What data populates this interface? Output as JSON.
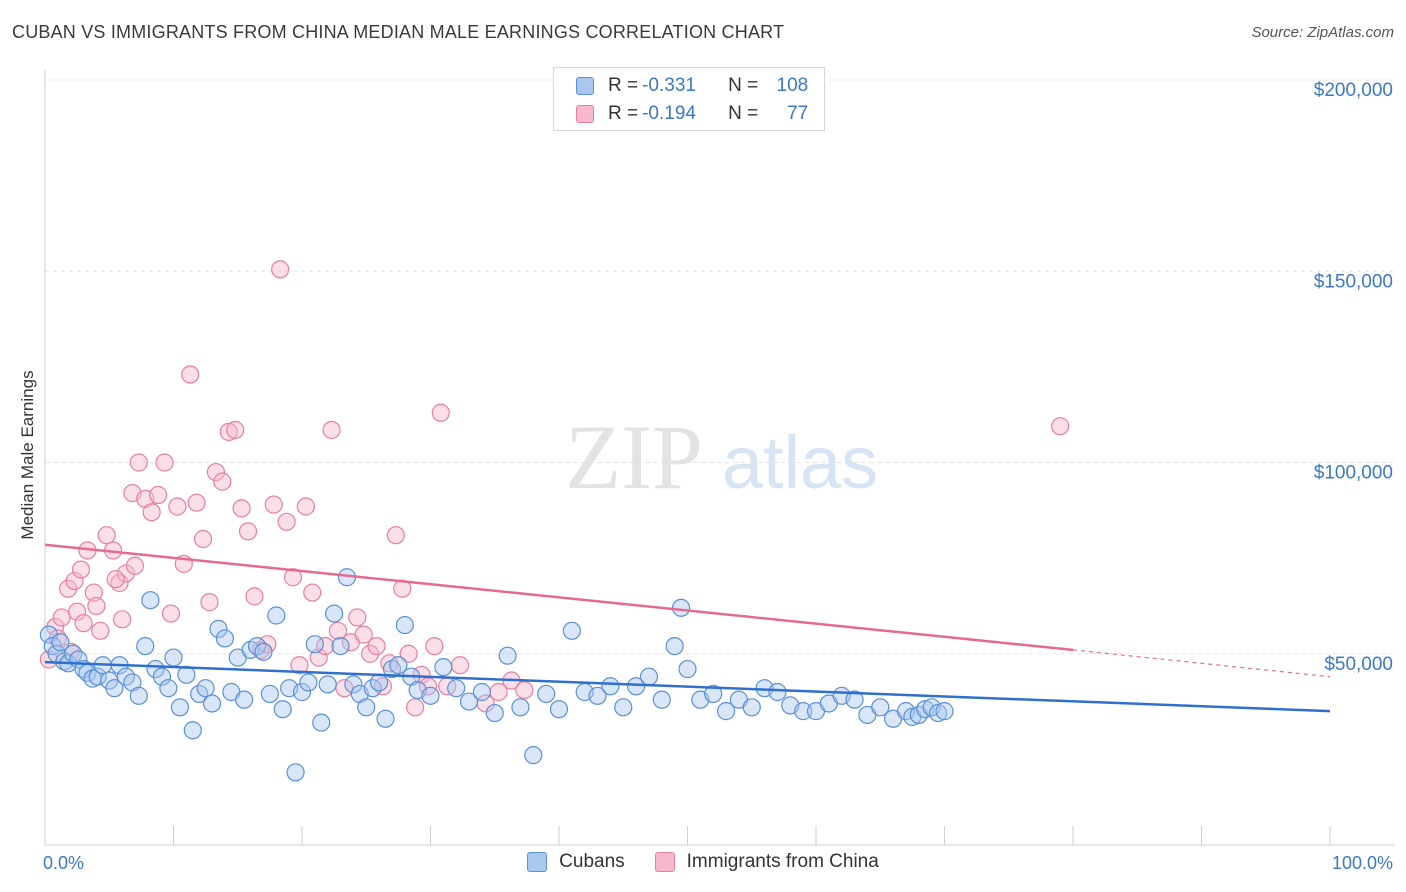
{
  "header": {
    "title": "CUBAN VS IMMIGRANTS FROM CHINA MEDIAN MALE EARNINGS CORRELATION CHART",
    "source": "Source: ZipAtlas.com"
  },
  "watermark": {
    "zip": "ZIP",
    "atlas": "atlas"
  },
  "legend": {
    "rows": [
      {
        "r_label": "R =",
        "r_value": "-0.331",
        "n_label": "N =",
        "n_value": "108"
      },
      {
        "r_label": "R =",
        "r_value": "-0.194",
        "n_label": "N =",
        "n_value": "77"
      }
    ]
  },
  "colors": {
    "cubans_fill": "#a9c8f0",
    "cubans_stroke": "#5b8fd6",
    "cubans_line": "#2f6fce",
    "china_fill": "#f6b8cb",
    "china_stroke": "#e77fa0",
    "china_line": "#e56a93",
    "tick_text": "#3b78c8"
  },
  "chart_data": {
    "type": "scatter",
    "title": "CUBAN VS IMMIGRANTS FROM CHINA MEDIAN MALE EARNINGS CORRELATION CHART",
    "xlabel": "",
    "ylabel": "Median Male Earnings",
    "xlim": [
      0,
      100
    ],
    "ylim": [
      0,
      210000
    ],
    "x_tick_labels": [
      "0.0%",
      "100.0%"
    ],
    "y_ticks": [
      {
        "value": 50000,
        "label": "$50,000"
      },
      {
        "value": 100000,
        "label": "$100,000"
      },
      {
        "value": 150000,
        "label": "$150,000"
      },
      {
        "value": 200000,
        "label": "$200,000"
      }
    ],
    "grid": true,
    "legend_position": "bottom-center",
    "series": [
      {
        "name": "Cubans",
        "trend": {
          "x": [
            0,
            100
          ],
          "y": [
            47800,
            35000
          ]
        },
        "points": [
          [
            0.3,
            55000
          ],
          [
            0.6,
            52000
          ],
          [
            0.9,
            50000
          ],
          [
            1.2,
            53000
          ],
          [
            1.5,
            48000
          ],
          [
            1.8,
            47500
          ],
          [
            2.2,
            50000
          ],
          [
            2.6,
            48500
          ],
          [
            3.0,
            46000
          ],
          [
            3.3,
            45000
          ],
          [
            3.7,
            43500
          ],
          [
            4.1,
            44000
          ],
          [
            4.5,
            47000
          ],
          [
            5.0,
            43000
          ],
          [
            5.4,
            41000
          ],
          [
            5.8,
            47000
          ],
          [
            6.3,
            44000
          ],
          [
            6.8,
            42500
          ],
          [
            7.3,
            39000
          ],
          [
            7.8,
            52000
          ],
          [
            8.2,
            64000
          ],
          [
            8.6,
            46000
          ],
          [
            9.1,
            44000
          ],
          [
            9.6,
            41000
          ],
          [
            10.0,
            49000
          ],
          [
            10.5,
            36000
          ],
          [
            11.0,
            44500
          ],
          [
            11.5,
            30000
          ],
          [
            12.0,
            39500
          ],
          [
            12.5,
            41000
          ],
          [
            13.0,
            37000
          ],
          [
            13.5,
            56500
          ],
          [
            14.0,
            54000
          ],
          [
            14.5,
            40000
          ],
          [
            15.0,
            49000
          ],
          [
            15.5,
            38000
          ],
          [
            16.0,
            51000
          ],
          [
            16.5,
            52000
          ],
          [
            17.0,
            50500
          ],
          [
            17.5,
            39500
          ],
          [
            18.0,
            60000
          ],
          [
            18.5,
            35500
          ],
          [
            19.0,
            41000
          ],
          [
            19.5,
            19000
          ],
          [
            20.0,
            40000
          ],
          [
            20.5,
            42500
          ],
          [
            21.0,
            52500
          ],
          [
            21.5,
            32000
          ],
          [
            22.0,
            42000
          ],
          [
            22.5,
            60500
          ],
          [
            23.0,
            52000
          ],
          [
            23.5,
            70000
          ],
          [
            24.0,
            42000
          ],
          [
            24.5,
            39500
          ],
          [
            25.0,
            36000
          ],
          [
            25.5,
            41000
          ],
          [
            26.0,
            42500
          ],
          [
            26.5,
            33000
          ],
          [
            27.0,
            46000
          ],
          [
            27.5,
            47000
          ],
          [
            28.0,
            57500
          ],
          [
            28.5,
            44000
          ],
          [
            29.0,
            40500
          ],
          [
            30.0,
            39000
          ],
          [
            31.0,
            46500
          ],
          [
            32.0,
            41000
          ],
          [
            33.0,
            37500
          ],
          [
            34.0,
            40000
          ],
          [
            35.0,
            34500
          ],
          [
            36.0,
            49500
          ],
          [
            37.0,
            36000
          ],
          [
            38.0,
            23500
          ],
          [
            39.0,
            39500
          ],
          [
            40.0,
            35500
          ],
          [
            41.0,
            56000
          ],
          [
            42.0,
            40000
          ],
          [
            43.0,
            39000
          ],
          [
            44.0,
            41500
          ],
          [
            45.0,
            36000
          ],
          [
            46.0,
            41500
          ],
          [
            47.0,
            44000
          ],
          [
            48.0,
            38000
          ],
          [
            49.0,
            52000
          ],
          [
            49.5,
            62000
          ],
          [
            50.0,
            46000
          ],
          [
            51.0,
            38000
          ],
          [
            52.0,
            39500
          ],
          [
            53.0,
            35000
          ],
          [
            54.0,
            38000
          ],
          [
            55.0,
            36000
          ],
          [
            56.0,
            41000
          ],
          [
            57.0,
            40000
          ],
          [
            58.0,
            36500
          ],
          [
            59.0,
            35000
          ],
          [
            60.0,
            35000
          ],
          [
            61.0,
            37000
          ],
          [
            62.0,
            39000
          ],
          [
            63.0,
            38000
          ],
          [
            64.0,
            34000
          ],
          [
            65.0,
            36000
          ],
          [
            66.0,
            33000
          ],
          [
            67.0,
            35000
          ],
          [
            67.5,
            33500
          ],
          [
            68.0,
            34000
          ],
          [
            68.5,
            35500
          ],
          [
            69.0,
            36000
          ],
          [
            69.5,
            34500
          ],
          [
            70.0,
            35000
          ]
        ]
      },
      {
        "name": "Immigrants from China",
        "trend": {
          "x": [
            0,
            80
          ],
          "y": [
            78500,
            51000
          ]
        },
        "trend_dashed": {
          "x": [
            80,
            100
          ],
          "y": [
            51000,
            44000
          ]
        },
        "points": [
          [
            0.3,
            48500
          ],
          [
            0.8,
            57000
          ],
          [
            1.3,
            59500
          ],
          [
            1.8,
            67000
          ],
          [
            2.3,
            69000
          ],
          [
            2.8,
            72000
          ],
          [
            3.3,
            77000
          ],
          [
            3.8,
            66000
          ],
          [
            4.3,
            56000
          ],
          [
            4.8,
            81000
          ],
          [
            5.3,
            77000
          ],
          [
            5.8,
            68500
          ],
          [
            6.3,
            71000
          ],
          [
            6.8,
            92000
          ],
          [
            7.3,
            100000
          ],
          [
            7.8,
            90500
          ],
          [
            8.3,
            87000
          ],
          [
            8.8,
            91500
          ],
          [
            9.3,
            100000
          ],
          [
            9.8,
            60500
          ],
          [
            10.3,
            88500
          ],
          [
            10.8,
            73500
          ],
          [
            11.3,
            123000
          ],
          [
            11.8,
            89500
          ],
          [
            12.3,
            80000
          ],
          [
            12.8,
            63500
          ],
          [
            13.3,
            97500
          ],
          [
            13.8,
            95000
          ],
          [
            14.3,
            108000
          ],
          [
            14.8,
            108500
          ],
          [
            15.3,
            88000
          ],
          [
            15.8,
            82000
          ],
          [
            16.3,
            65000
          ],
          [
            16.8,
            51000
          ],
          [
            17.3,
            52500
          ],
          [
            17.8,
            89000
          ],
          [
            18.3,
            150500
          ],
          [
            18.8,
            84500
          ],
          [
            19.3,
            70000
          ],
          [
            19.8,
            47000
          ],
          [
            20.3,
            88500
          ],
          [
            20.8,
            66000
          ],
          [
            21.3,
            49000
          ],
          [
            21.8,
            52000
          ],
          [
            22.3,
            108500
          ],
          [
            22.8,
            56000
          ],
          [
            23.3,
            41000
          ],
          [
            23.8,
            53000
          ],
          [
            24.3,
            59500
          ],
          [
            24.8,
            55000
          ],
          [
            25.3,
            50000
          ],
          [
            25.8,
            52000
          ],
          [
            26.3,
            41500
          ],
          [
            26.8,
            47500
          ],
          [
            27.3,
            81000
          ],
          [
            27.8,
            67000
          ],
          [
            28.3,
            50000
          ],
          [
            28.8,
            36000
          ],
          [
            29.3,
            44500
          ],
          [
            29.8,
            41500
          ],
          [
            30.3,
            52000
          ],
          [
            30.8,
            113000
          ],
          [
            31.3,
            41500
          ],
          [
            32.3,
            47000
          ],
          [
            34.3,
            37000
          ],
          [
            35.3,
            40000
          ],
          [
            36.3,
            43000
          ],
          [
            37.3,
            40500
          ],
          [
            79.0,
            109500
          ],
          [
            1.0,
            54000
          ],
          [
            2.0,
            50500
          ],
          [
            2.5,
            61000
          ],
          [
            3.0,
            58000
          ],
          [
            4.0,
            62500
          ],
          [
            5.5,
            69500
          ],
          [
            6.0,
            59000
          ],
          [
            7.0,
            73000
          ]
        ]
      }
    ]
  }
}
